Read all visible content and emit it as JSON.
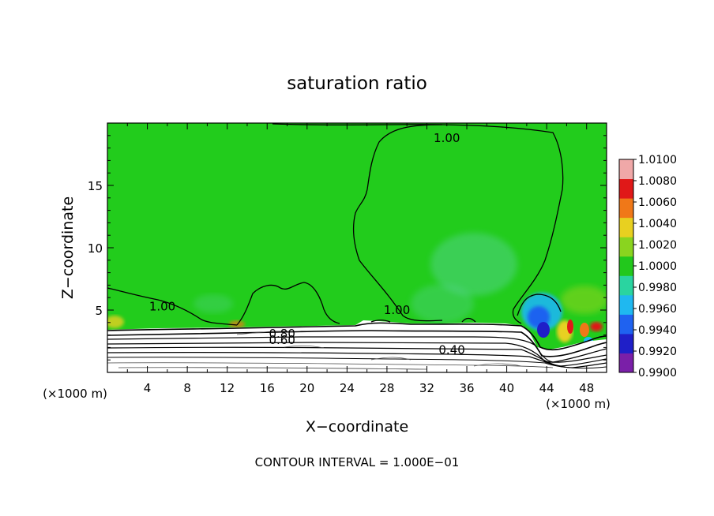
{
  "chart_data": {
    "type": "contour",
    "title": "saturation ratio",
    "xlabel": "X−coordinate",
    "ylabel": "Z−coordinate",
    "x_unit_left": "(×1000 m)",
    "x_unit_right": "(×1000 m)",
    "footer": "CONTOUR INTERVAL = 1.000E−01",
    "xlim": [
      0,
      50
    ],
    "ylim": [
      0,
      20
    ],
    "x_ticks": [
      4,
      8,
      12,
      16,
      20,
      24,
      28,
      32,
      36,
      40,
      44,
      48
    ],
    "y_ticks": [
      5,
      10,
      15
    ],
    "colorbar": {
      "levels": [
        "0.9900",
        "0.9920",
        "0.9940",
        "0.9960",
        "0.9980",
        "1.0000",
        "1.0020",
        "1.0040",
        "1.0060",
        "1.0080",
        "1.0100"
      ],
      "colors": [
        "#7a1fa8",
        "#1f1fc8",
        "#1f62f0",
        "#1fb8f0",
        "#2ad4a0",
        "#22c81c",
        "#8ad41f",
        "#e8d020",
        "#f07818",
        "#e01818",
        "#f0a8a8"
      ]
    },
    "background_color": "#22cc1c",
    "contour_labels": [
      {
        "text": "1.00",
        "x": 34.0,
        "z": 18.8
      },
      {
        "text": "1.00",
        "x": 5.5,
        "z": 5.3
      },
      {
        "text": "1.00",
        "x": 29.0,
        "z": 5.0
      },
      {
        "text": "0.80",
        "x": 17.5,
        "z": 3.1
      },
      {
        "text": "0.60",
        "x": 17.5,
        "z": 2.6
      },
      {
        "text": "0.40",
        "x": 34.5,
        "z": 1.8
      }
    ]
  }
}
